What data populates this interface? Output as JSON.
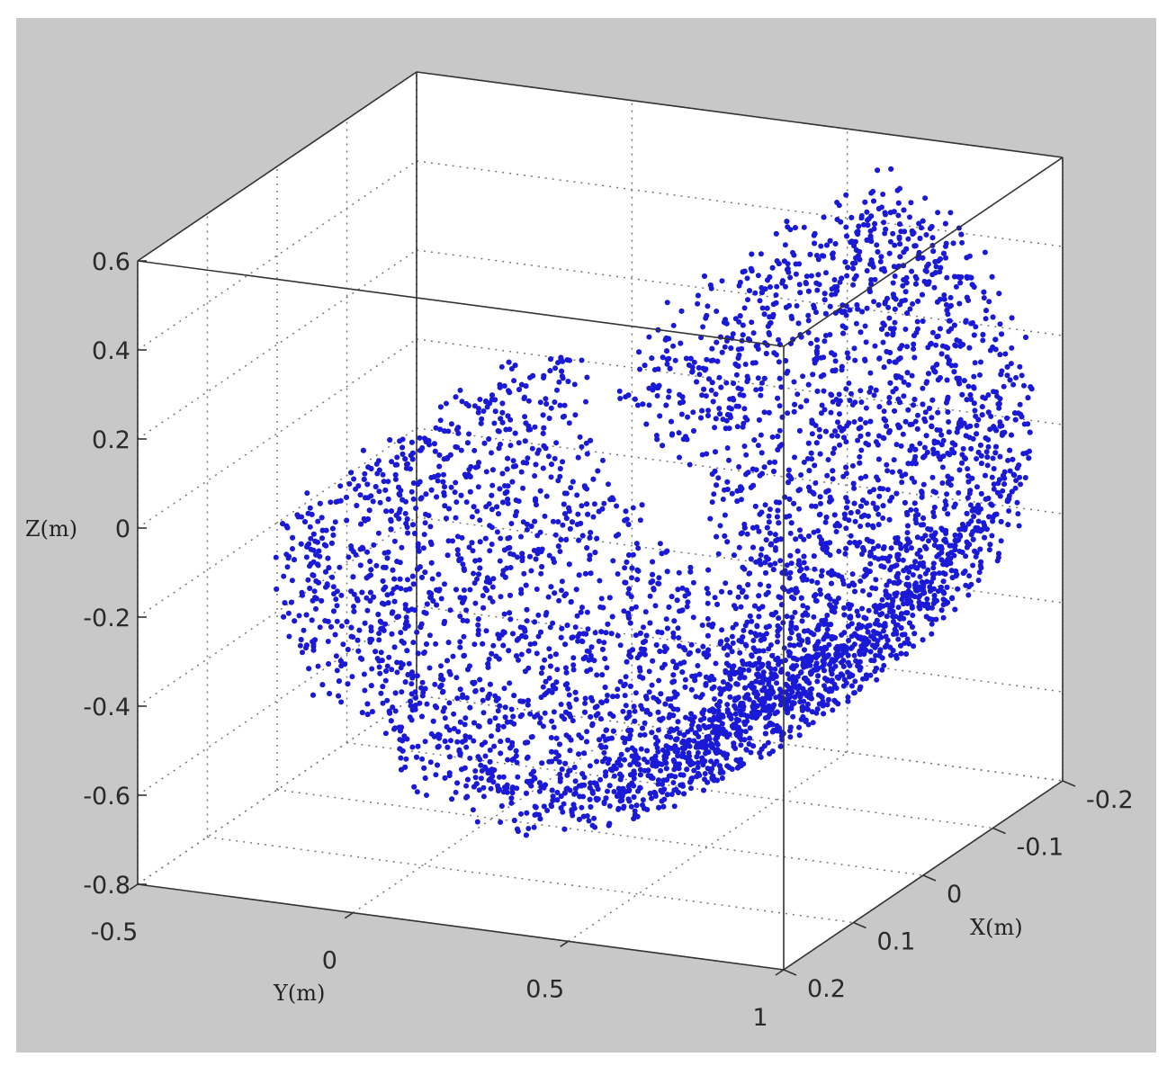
{
  "chart_data": {
    "type": "scatter",
    "projection": "3d",
    "grid": true,
    "marker": "dot",
    "color": "#1a1ad6",
    "background": "#c8c8c8",
    "plot_background": "#ffffff",
    "series": [
      {
        "shape": "partial hemispherical shell (bowl) of points",
        "center": {
          "x": 0.0,
          "y": 0.38,
          "z": 0.0
        },
        "radius": 0.62,
        "x_range": [
          -0.2,
          0.2
        ],
        "y_range": [
          -0.3,
          1.0
        ],
        "z_range": [
          -0.72,
          0.6
        ]
      }
    ],
    "axes": {
      "x": {
        "label": "X(m)",
        "ticks": [
          "-0.2",
          "-0.1",
          "0",
          "0.1",
          "0.2"
        ],
        "range": [
          -0.2,
          0.2
        ]
      },
      "y": {
        "label": "Y(m)",
        "ticks": [
          "-0.5",
          "0",
          "0.5",
          "1"
        ],
        "range": [
          -0.5,
          1.0
        ]
      },
      "z": {
        "label": "Z(m)",
        "ticks": [
          "0.6",
          "0.4",
          "0.2",
          "0",
          "-0.2",
          "-0.4",
          "-0.6",
          "-0.8"
        ],
        "range": [
          -0.8,
          0.6
        ]
      }
    }
  }
}
